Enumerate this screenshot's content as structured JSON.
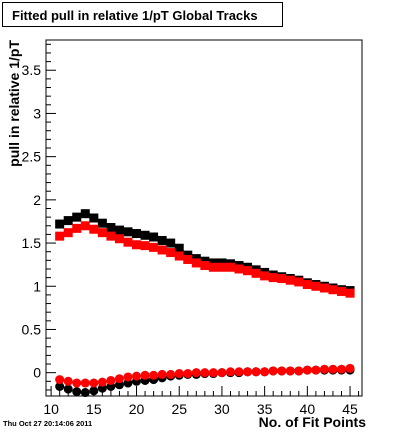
{
  "chart_data": {
    "type": "scatter",
    "title": "Fitted pull in relative 1/pT  Global Tracks",
    "xlabel": "No. of Fit Points",
    "ylabel": "pull in relative 1/pT",
    "xlim": [
      9.4,
      46.4
    ],
    "ylim": [
      -0.27,
      3.85
    ],
    "x_ticks": [
      10,
      15,
      20,
      25,
      30,
      35,
      40,
      45
    ],
    "y_ticks": [
      0,
      0.5,
      1,
      1.5,
      2,
      2.5,
      3,
      3.5
    ],
    "grid": false,
    "legend": "none",
    "series": [
      {
        "style": "square",
        "color": "#000000",
        "x": [
          11,
          12,
          13,
          14,
          15,
          16,
          17,
          18,
          19,
          20,
          21,
          22,
          23,
          24,
          25,
          26,
          27,
          28,
          29,
          30,
          31,
          32,
          33,
          34,
          35,
          36,
          37,
          38,
          39,
          40,
          41,
          42,
          43,
          44,
          45
        ],
        "values": [
          1.72,
          1.76,
          1.8,
          1.84,
          1.79,
          1.73,
          1.68,
          1.65,
          1.63,
          1.61,
          1.59,
          1.57,
          1.53,
          1.5,
          1.44,
          1.36,
          1.32,
          1.29,
          1.27,
          1.27,
          1.26,
          1.24,
          1.22,
          1.19,
          1.16,
          1.13,
          1.11,
          1.09,
          1.07,
          1.04,
          1.02,
          1.0,
          0.98,
          0.96,
          0.95
        ]
      },
      {
        "style": "square",
        "color": "#ff0000",
        "x": [
          11,
          12,
          13,
          14,
          15,
          16,
          17,
          18,
          19,
          20,
          21,
          22,
          23,
          24,
          25,
          26,
          27,
          28,
          29,
          30,
          31,
          32,
          33,
          34,
          35,
          36,
          37,
          38,
          39,
          40,
          41,
          42,
          43,
          44,
          45
        ],
        "values": [
          1.58,
          1.62,
          1.67,
          1.7,
          1.66,
          1.62,
          1.58,
          1.55,
          1.51,
          1.48,
          1.47,
          1.45,
          1.42,
          1.39,
          1.35,
          1.31,
          1.27,
          1.24,
          1.22,
          1.22,
          1.22,
          1.2,
          1.18,
          1.15,
          1.12,
          1.1,
          1.09,
          1.07,
          1.05,
          1.02,
          1.0,
          0.98,
          0.96,
          0.94,
          0.92
        ]
      },
      {
        "style": "circle",
        "color": "#000000",
        "x": [
          11,
          12,
          13,
          14,
          15,
          16,
          17,
          18,
          19,
          20,
          21,
          22,
          23,
          24,
          25,
          26,
          27,
          28,
          29,
          30,
          31,
          32,
          33,
          34,
          35,
          36,
          37,
          38,
          39,
          40,
          41,
          42,
          43,
          44,
          45
        ],
        "values": [
          -0.16,
          -0.19,
          -0.22,
          -0.23,
          -0.21,
          -0.18,
          -0.16,
          -0.14,
          -0.12,
          -0.1,
          -0.09,
          -0.08,
          -0.06,
          -0.04,
          -0.03,
          -0.02,
          -0.02,
          -0.01,
          -0.01,
          0.0,
          0.0,
          0.0,
          0.01,
          0.01,
          0.01,
          0.02,
          0.02,
          0.02,
          0.02,
          0.03,
          0.03,
          0.03,
          0.03,
          0.03,
          0.03
        ]
      },
      {
        "style": "circle",
        "color": "#ff0000",
        "x": [
          11,
          12,
          13,
          14,
          15,
          16,
          17,
          18,
          19,
          20,
          21,
          22,
          23,
          24,
          25,
          26,
          27,
          28,
          29,
          30,
          31,
          32,
          33,
          34,
          35,
          36,
          37,
          38,
          39,
          40,
          41,
          42,
          43,
          44,
          45
        ],
        "values": [
          -0.08,
          -0.1,
          -0.12,
          -0.12,
          -0.12,
          -0.11,
          -0.09,
          -0.07,
          -0.05,
          -0.04,
          -0.03,
          -0.03,
          -0.02,
          -0.02,
          -0.01,
          -0.01,
          0.0,
          0.0,
          0.0,
          0.0,
          0.01,
          0.01,
          0.01,
          0.01,
          0.01,
          0.02,
          0.02,
          0.02,
          0.02,
          0.03,
          0.03,
          0.04,
          0.04,
          0.04,
          0.05
        ]
      }
    ]
  },
  "footer": {
    "timestamp": "Thu Oct 27 20:14:06 2011"
  }
}
